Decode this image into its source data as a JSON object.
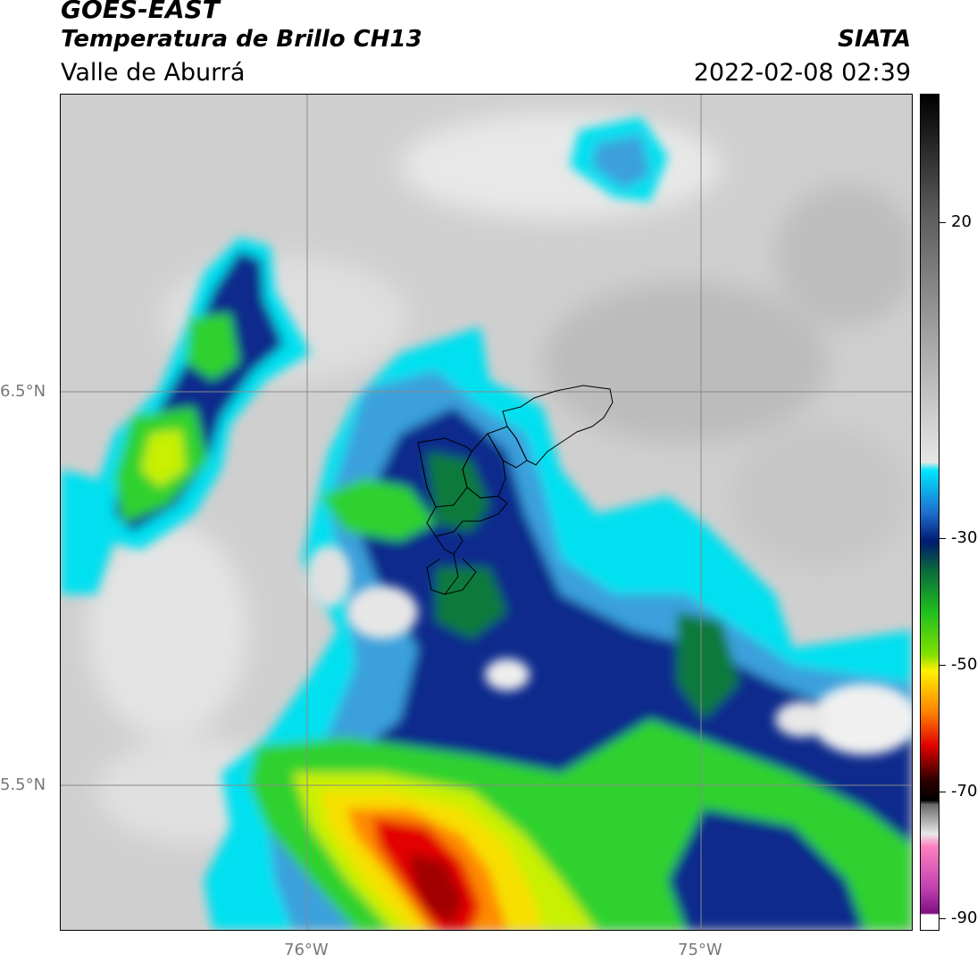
{
  "header": {
    "satellite": "GOES-EAST",
    "product": "Temperatura de Brillo CH13",
    "region": "Valle de Aburrá",
    "organization": "SIATA",
    "timestamp": "2022-02-08 02:39"
  },
  "map": {
    "lat_labels": [
      "6.5°N",
      "5.5°N"
    ],
    "lon_labels": [
      "76°W",
      "75°W"
    ],
    "colors": {
      "clear": "#d3d3d3",
      "cyan": "#00e0f0",
      "light_blue": "#3aa0dc",
      "dark_blue": "#0a2a8c",
      "dark_green": "#0f7a3a",
      "green": "#2fd12f",
      "yellow_green": "#c8f000",
      "yellow": "#f7e000",
      "orange": "#ff8a00",
      "red": "#e30000",
      "dark_red": "#a00000"
    }
  },
  "colorbar": {
    "labels": [
      "20",
      "-30",
      "-50",
      "-70",
      "-90"
    ],
    "stops": [
      "#000000",
      "#3a3a3a",
      "#8c8c8c",
      "#d8d8d8",
      "#ffffff",
      "#00e5ff",
      "#1e6fd0",
      "#001a70",
      "#0a6a3a",
      "#20c020",
      "#80e000",
      "#fff000",
      "#ff8000",
      "#e00000",
      "#300000",
      "#c8c8c8",
      "#ff80c0",
      "#a020a0",
      "#ffffff"
    ]
  }
}
